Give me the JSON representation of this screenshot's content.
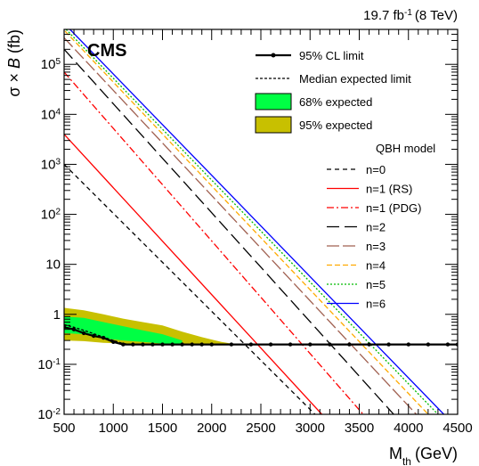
{
  "chart_data": {
    "type": "line",
    "lumi": "19.7 fb",
    "lumi_exp": "-1",
    "energy": "(8 TeV)",
    "experiment": "CMS",
    "xlabel_main": "M",
    "xlabel_sub": "th",
    "xlabel_unit": "(GeV)",
    "ylabel_left": "σ × ",
    "ylabel_italic": "B",
    "ylabel_unit": " (fb)",
    "xlim": [
      500,
      4500
    ],
    "ylim": [
      0.01,
      500000
    ],
    "yscale": "log",
    "x_ticks": [
      500,
      1000,
      1500,
      2000,
      2500,
      3000,
      3500,
      4000,
      4500
    ],
    "y_ticks": [
      {
        "value": 0.01,
        "base": "10",
        "exp": "-2"
      },
      {
        "value": 0.1,
        "base": "10",
        "exp": "-1"
      },
      {
        "value": 1,
        "base": "1",
        "exp": ""
      },
      {
        "value": 10,
        "base": "10",
        "exp": ""
      },
      {
        "value": 100,
        "base": "10",
        "exp": "2"
      },
      {
        "value": 1000,
        "base": "10",
        "exp": "3"
      },
      {
        "value": 10000,
        "base": "10",
        "exp": "4"
      },
      {
        "value": 100000,
        "base": "10",
        "exp": "5"
      }
    ],
    "legend_top": [
      {
        "label": "95% CL limit",
        "style": "observed"
      },
      {
        "label": "Median expected limit",
        "style": "expected"
      },
      {
        "label": "68% expected",
        "style": "band68",
        "color": "#00ff44"
      },
      {
        "label": "95% expected",
        "style": "band95",
        "color": "#c8c000"
      }
    ],
    "legend_model_title": "QBH model",
    "observed": {
      "x": [
        500,
        600,
        700,
        800,
        900,
        1000,
        1100,
        1200,
        1300,
        1400,
        1500,
        1600,
        1700,
        1800,
        1900,
        2000,
        2200,
        2400,
        2600,
        2800,
        3000,
        3200,
        3400,
        3600,
        3800,
        4000,
        4200,
        4400,
        4500
      ],
      "y": [
        0.55,
        0.5,
        0.42,
        0.37,
        0.34,
        0.28,
        0.25,
        0.25,
        0.25,
        0.25,
        0.25,
        0.25,
        0.25,
        0.25,
        0.25,
        0.25,
        0.25,
        0.25,
        0.25,
        0.25,
        0.25,
        0.25,
        0.25,
        0.25,
        0.25,
        0.25,
        0.25,
        0.25,
        0.25
      ]
    },
    "expected": {
      "x": [
        500,
        600,
        700,
        800,
        900,
        1000,
        1100,
        1200,
        1400,
        1600,
        1800,
        2000,
        2200,
        2500,
        3000,
        3500,
        4000,
        4500
      ],
      "y": [
        0.62,
        0.55,
        0.48,
        0.41,
        0.35,
        0.3,
        0.26,
        0.25,
        0.25,
        0.25,
        0.25,
        0.25,
        0.25,
        0.25,
        0.25,
        0.25,
        0.25,
        0.25
      ]
    },
    "band68": {
      "x": [
        500,
        700,
        900,
        1100,
        1300,
        1500,
        1700
      ],
      "lower": [
        0.42,
        0.4,
        0.33,
        0.3,
        0.28,
        0.26,
        0.25
      ],
      "upper": [
        0.9,
        0.85,
        0.7,
        0.58,
        0.48,
        0.4,
        0.3
      ]
    },
    "band95": {
      "x": [
        500,
        700,
        900,
        1100,
        1300,
        1500,
        1700,
        1900,
        2100,
        2200
      ],
      "lower": [
        0.3,
        0.29,
        0.27,
        0.26,
        0.25,
        0.25,
        0.25,
        0.25,
        0.25,
        0.25
      ],
      "upper": [
        1.35,
        1.2,
        1.0,
        0.82,
        0.7,
        0.6,
        0.45,
        0.35,
        0.28,
        0.26
      ]
    },
    "series": [
      {
        "name": "n=0",
        "color": "#000000",
        "dash": "5,4",
        "x": [
          500,
          3050
        ],
        "y": [
          1000,
          0.01
        ]
      },
      {
        "name": "n=1 (RS)",
        "color": "#ff0000",
        "dash": "",
        "x": [
          500,
          3120
        ],
        "y": [
          4000,
          0.01
        ]
      },
      {
        "name": "n=1 (PDG)",
        "color": "#ff0000",
        "dash": "8,3,2,3",
        "x": [
          500,
          3540
        ],
        "y": [
          70000,
          0.01
        ]
      },
      {
        "name": "n=2",
        "color": "#000000",
        "dash": "14,6",
        "x": [
          500,
          3850
        ],
        "y": [
          200000,
          0.01
        ]
      },
      {
        "name": "n=3",
        "color": "#a06050",
        "dash": "14,4",
        "x": [
          500,
          4080
        ],
        "y": [
          340000,
          0.01
        ]
      },
      {
        "name": "n=4",
        "color": "#ffaa00",
        "dash": "6,3",
        "x": [
          510,
          4200
        ],
        "y": [
          460000,
          0.01
        ]
      },
      {
        "name": "n=5",
        "color": "#00bb00",
        "dash": "2,2",
        "x": [
          520,
          4300
        ],
        "y": [
          500000,
          0.01
        ]
      },
      {
        "name": "n=6",
        "color": "#0000ff",
        "dash": "",
        "x": [
          560,
          4360
        ],
        "y": [
          500000,
          0.01
        ]
      }
    ]
  }
}
